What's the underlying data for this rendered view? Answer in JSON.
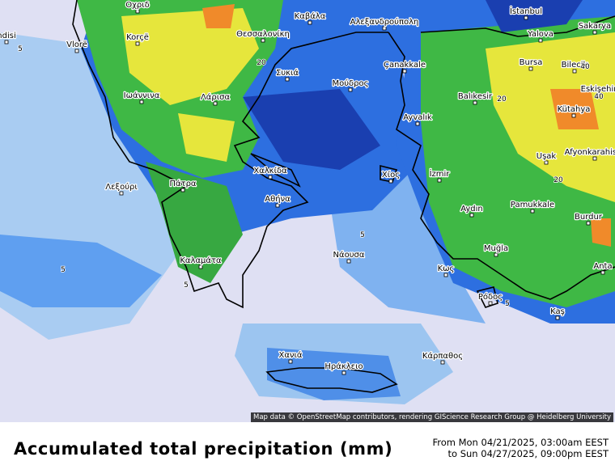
{
  "title": "Accumulated total precipitation (mm)",
  "date_from": "From Mon 04/21/2025, 03:00am EEST",
  "date_to": "to Sun 04/27/2025, 09:00pm EEST",
  "attribution": "Map data © OpenStreetMap contributors, rendering GIScience Research Group @ Heidelberg University",
  "cities": [
    "Οχριδ",
    "Καβάλα",
    "Αλεξανδρούπολη",
    "İstanbul",
    "ndisi",
    "Vlorë",
    "Korçë",
    "Θεσσαλονίκη",
    "Yalova",
    "Sakarya",
    "Bursa",
    "Bilecik",
    "Eskişehir",
    "Συκιά",
    "Çanakkale",
    "Μούδρος",
    "Ιωάννινα",
    "Λάρισα",
    "Balıkesir",
    "Kütahya",
    "Ayvalık",
    "Uşak",
    "Afyonkarahisar",
    "Χαλκίδα",
    "Χίος",
    "İzmir",
    "Λεξούρι",
    "Πάτρα",
    "Αθήνα",
    "Pamukkale",
    "Aydın",
    "Burdur",
    "Νάουσα",
    "Καλαμάτα",
    "Muğla",
    "Κως",
    "Anta",
    "Ρόδος",
    "Kaş",
    "Χανιά",
    "Ηράκλειο",
    "Κάρπαθος"
  ],
  "contour_labels": [
    5,
    5,
    20,
    20,
    40,
    40,
    5,
    5,
    20,
    5
  ]
}
